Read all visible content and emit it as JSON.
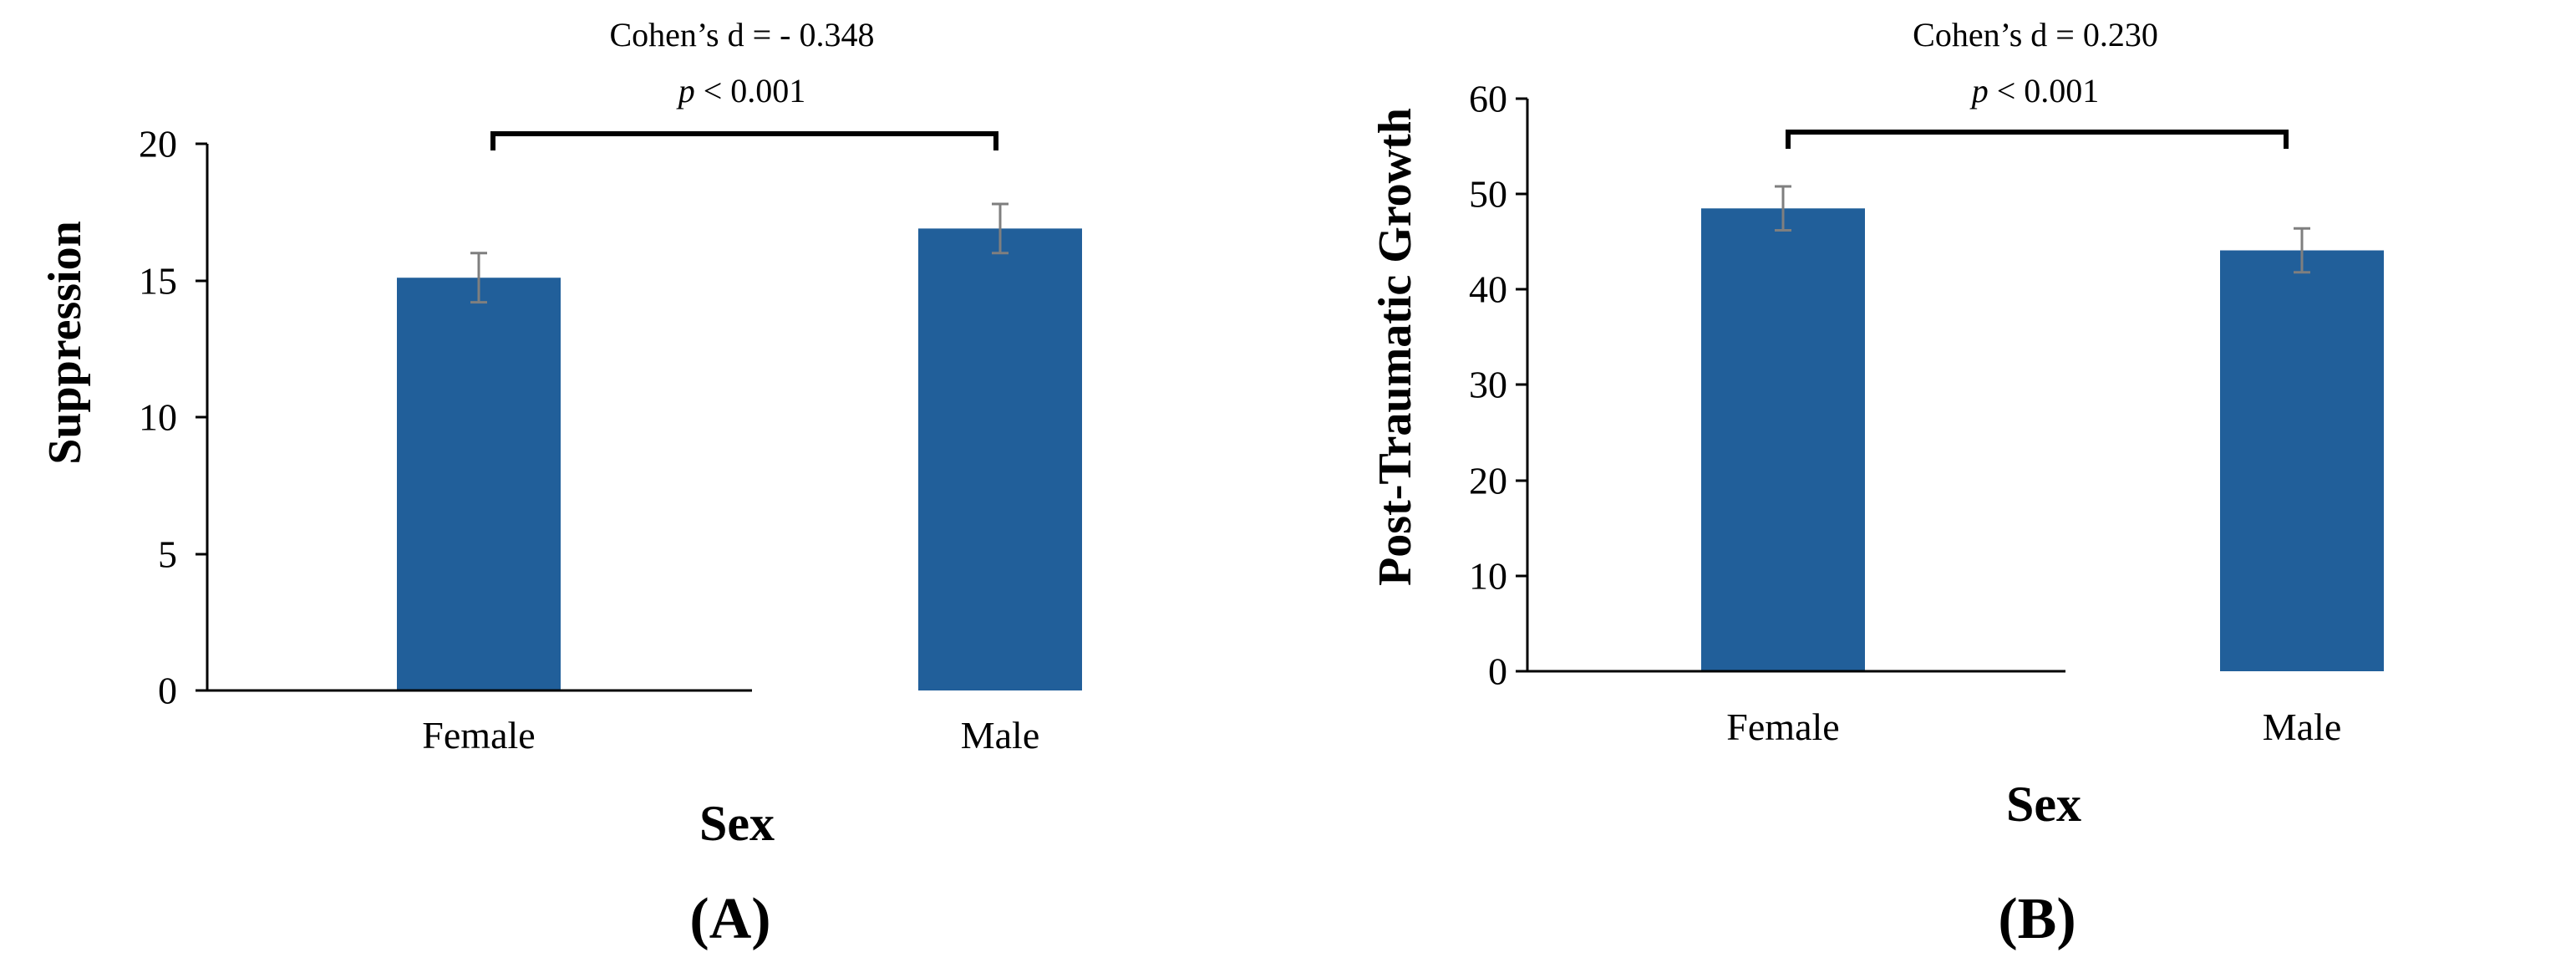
{
  "chart_data": [
    {
      "type": "bar",
      "panel_label": "(A)",
      "categories": [
        "Female",
        "Male"
      ],
      "values": [
        15.1,
        16.9
      ],
      "errors": [
        0.9,
        0.9
      ],
      "ylabel": "Suppression",
      "xlabel": "Sex",
      "ylim": [
        0,
        20
      ],
      "yticks": [
        "0",
        "5",
        "10",
        "15",
        "20"
      ],
      "annotation": {
        "effect": "Cohen’s d = - 0.348",
        "p_italic": "p",
        "p_rest": " < 0.001"
      },
      "bar_color": "#215f9a",
      "grid": false
    },
    {
      "type": "bar",
      "panel_label": "(B)",
      "categories": [
        "Female",
        "Male"
      ],
      "values": [
        48.5,
        44.1
      ],
      "errors": [
        2.3,
        2.3
      ],
      "ylabel": "Post-Traumatic Growth",
      "xlabel": "Sex",
      "ylim": [
        0,
        60
      ],
      "yticks": [
        "0",
        "10",
        "20",
        "30",
        "40",
        "50",
        "60"
      ],
      "annotation": {
        "effect": "Cohen’s d = 0.230",
        "p_italic": "p",
        "p_rest": " < 0.001"
      },
      "bar_color": "#215f9a",
      "grid": false
    }
  ]
}
